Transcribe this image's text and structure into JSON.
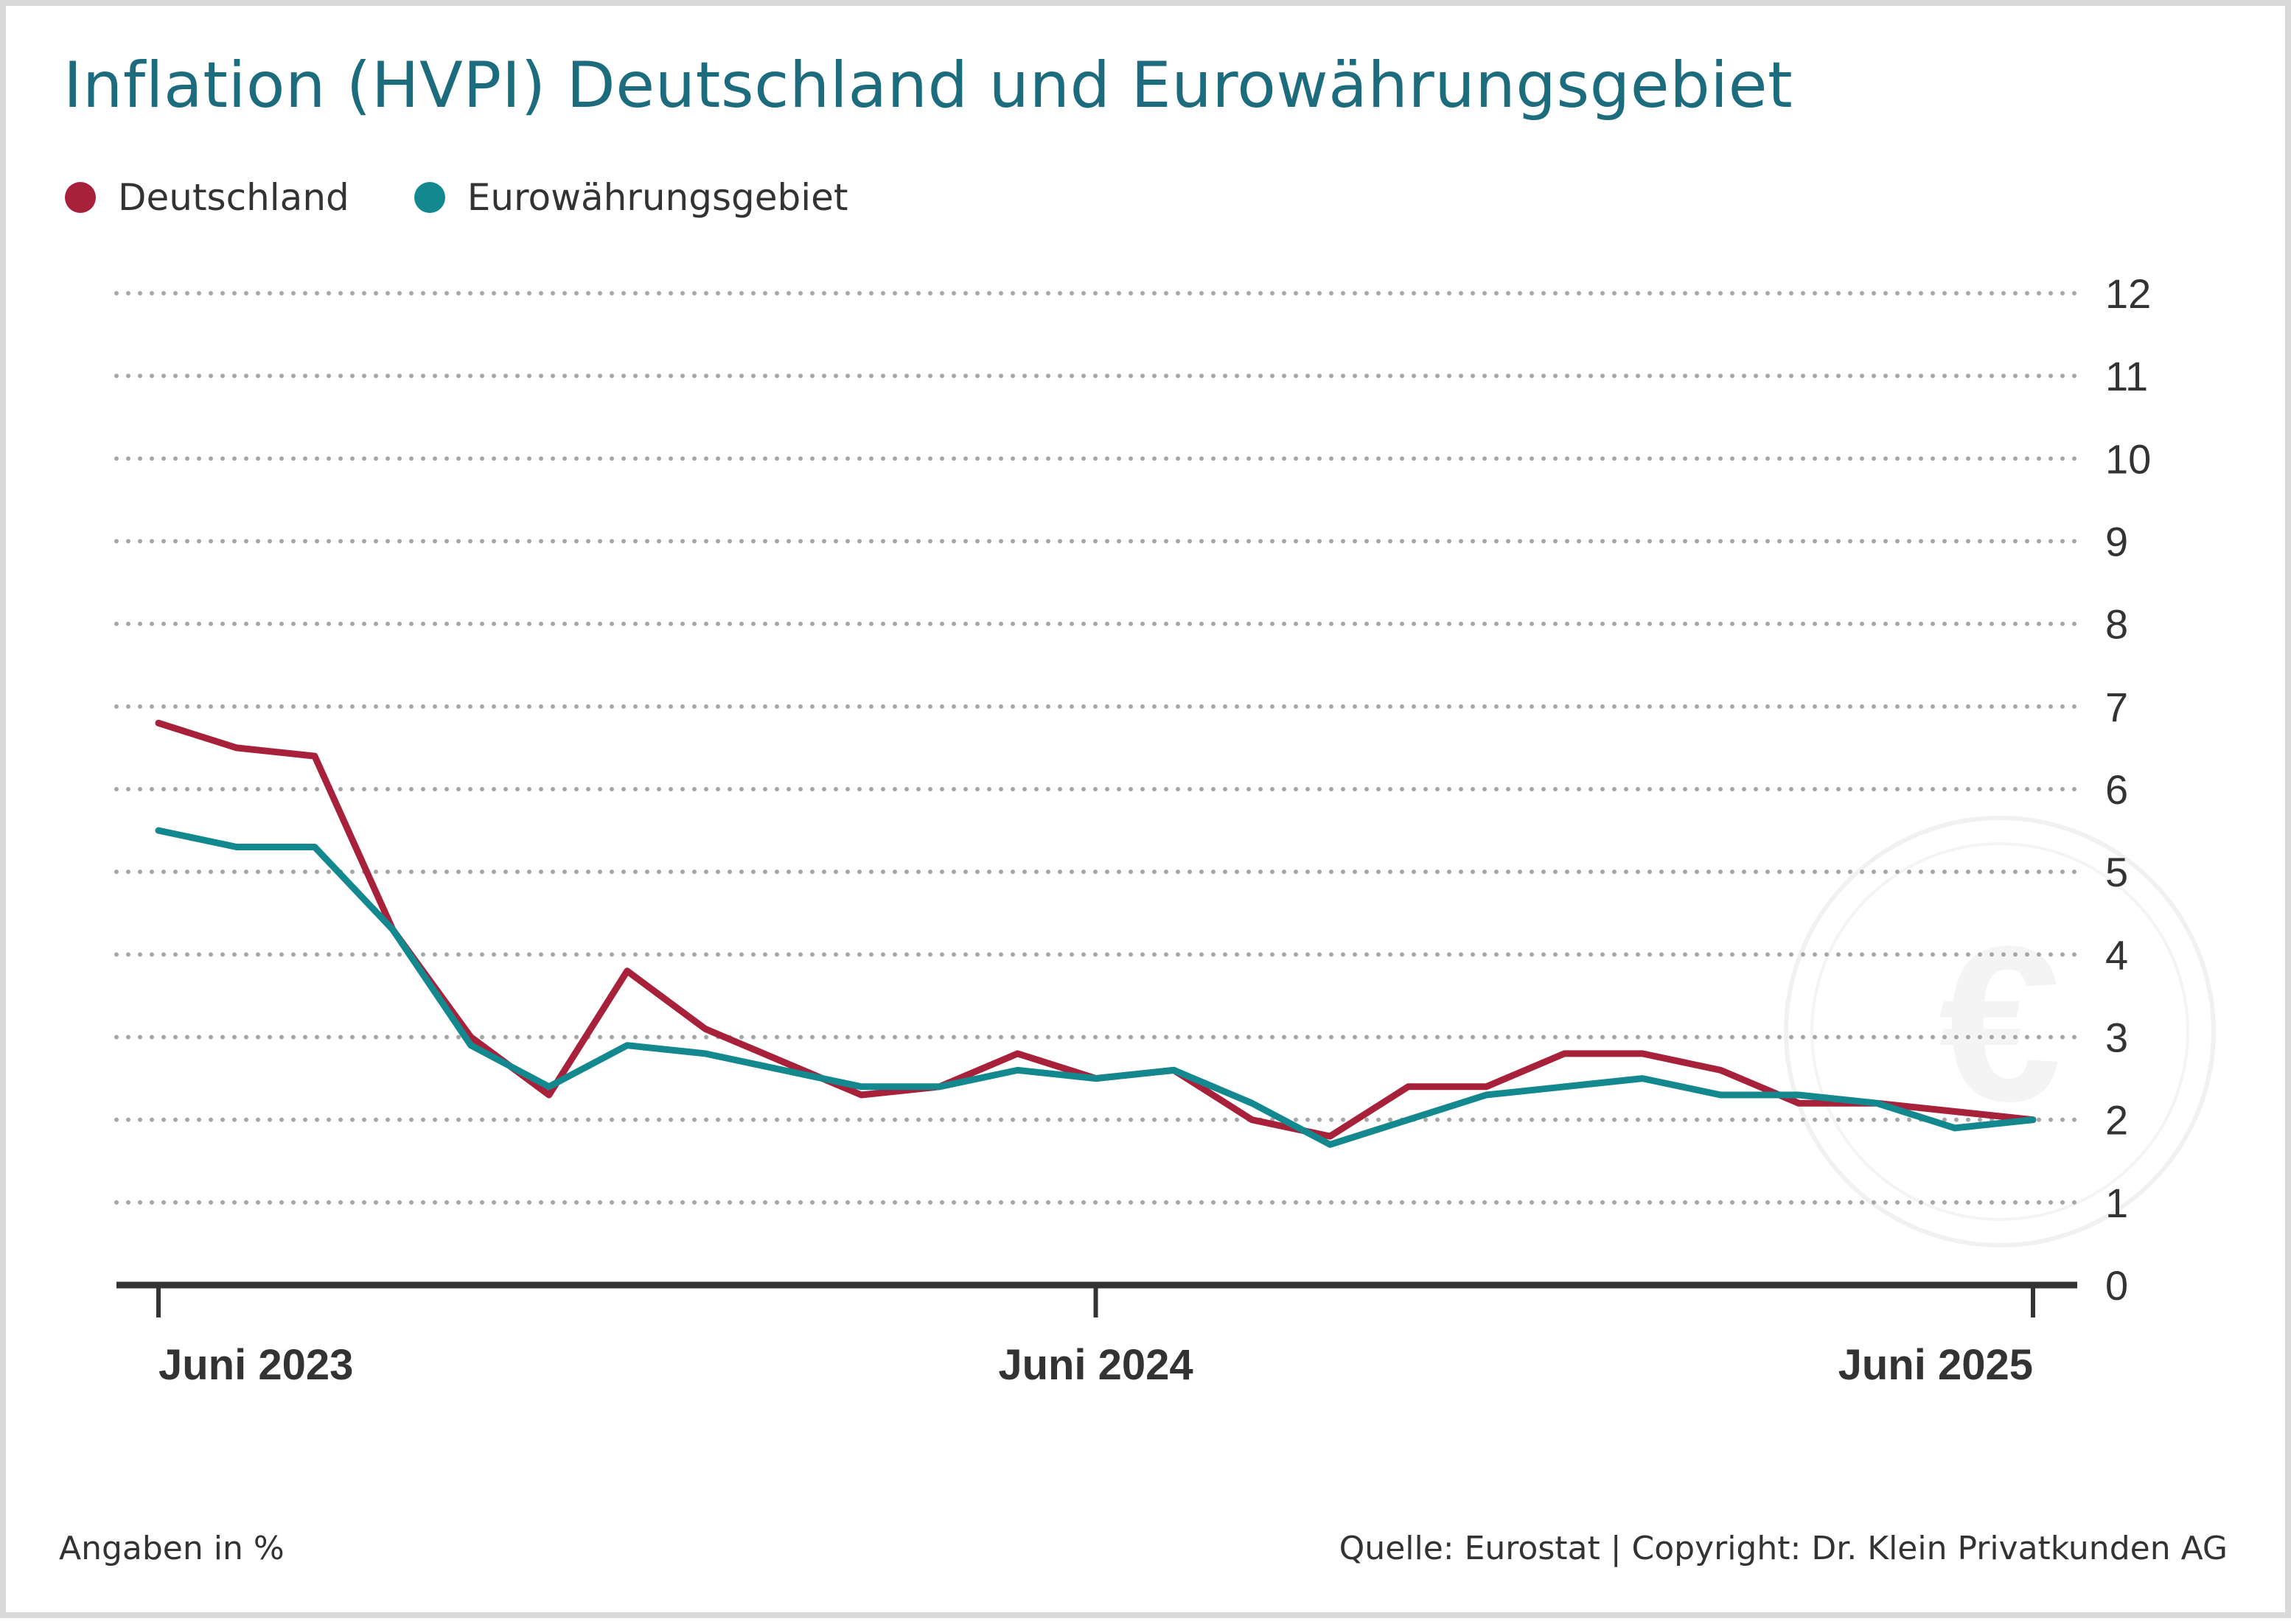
{
  "title": "Inflation (HVPI) Deutschland und Eurowährungsgebiet",
  "footer": {
    "unit_note": "Angaben in %",
    "source": "Quelle: Eurostat | Copyright: Dr. Klein Privatkunden AG"
  },
  "colors": {
    "title": "#1d6c7e",
    "deutschland": "#a8213a",
    "eurozone": "#14888f",
    "grid": "#a6a6a6",
    "axis": "#333333"
  },
  "watermark_icon": "euro-coin-icon",
  "chart_data": {
    "type": "line",
    "title": "Inflation (HVPI) Deutschland und Eurowährungsgebiet",
    "ylim": [
      0,
      12
    ],
    "y_ticks": [
      "0",
      "1",
      "2",
      "3",
      "4",
      "5",
      "6",
      "7",
      "8",
      "9",
      "10",
      "11",
      "12"
    ],
    "y_axis_position": "right",
    "x": [
      "2023-06",
      "2023-07",
      "2023-08",
      "2023-09",
      "2023-10",
      "2023-11",
      "2023-12",
      "2024-01",
      "2024-02",
      "2024-03",
      "2024-04",
      "2024-05",
      "2024-06",
      "2024-07",
      "2024-08",
      "2024-09",
      "2024-10",
      "2024-11",
      "2024-12",
      "2025-01",
      "2025-02",
      "2025-03",
      "2025-04",
      "2025-05",
      "2025-06"
    ],
    "x_tick_labels": [
      {
        "x": "2023-06",
        "label": "Juni 2023"
      },
      {
        "x": "2024-06",
        "label": "Juni 2024"
      },
      {
        "x": "2025-06",
        "label": "Juni 2025"
      }
    ],
    "grid": "horizontal dotted",
    "legend_position": "top-left",
    "series": [
      {
        "name": "Deutschland",
        "color": "#a8213a",
        "values": [
          6.8,
          6.5,
          6.4,
          4.3,
          3.0,
          2.3,
          3.8,
          3.1,
          2.7,
          2.3,
          2.4,
          2.8,
          2.5,
          2.6,
          2.0,
          1.8,
          2.4,
          2.4,
          2.8,
          2.8,
          2.6,
          2.2,
          2.2,
          2.1,
          2.0
        ]
      },
      {
        "name": "Eurowährungsgebiet",
        "color": "#14888f",
        "values": [
          5.5,
          5.3,
          5.3,
          4.3,
          2.9,
          2.4,
          2.9,
          2.8,
          2.6,
          2.4,
          2.4,
          2.6,
          2.5,
          2.6,
          2.2,
          1.7,
          2.0,
          2.3,
          2.4,
          2.5,
          2.3,
          2.3,
          2.2,
          1.9,
          2.0
        ]
      }
    ]
  }
}
